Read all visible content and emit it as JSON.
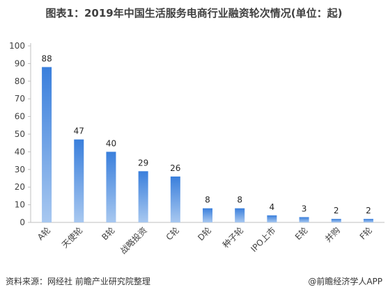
{
  "chart_data": {
    "type": "bar",
    "title": "图表1：2019年中国生活服务电商行业融资轮次情况(单位：起)",
    "categories": [
      "A轮",
      "天使轮",
      "B轮",
      "战略投资",
      "C轮",
      "D轮",
      "种子轮",
      "IPO上市",
      "E轮",
      "并购",
      "F轮"
    ],
    "values": [
      88,
      47,
      40,
      29,
      26,
      8,
      8,
      4,
      3,
      2,
      2
    ],
    "ylim": [
      0,
      100
    ],
    "yticks": [
      0,
      10,
      20,
      30,
      40,
      50,
      60,
      70,
      80,
      90,
      100
    ],
    "grid": false,
    "legend": "none",
    "colors": {
      "top": "#3a7fdc",
      "bottom": "#a8c8f0"
    }
  },
  "footer": {
    "source": "资料来源：网经社 前瞻产业研究院整理",
    "credit": "@前瞻经济学人APP"
  }
}
